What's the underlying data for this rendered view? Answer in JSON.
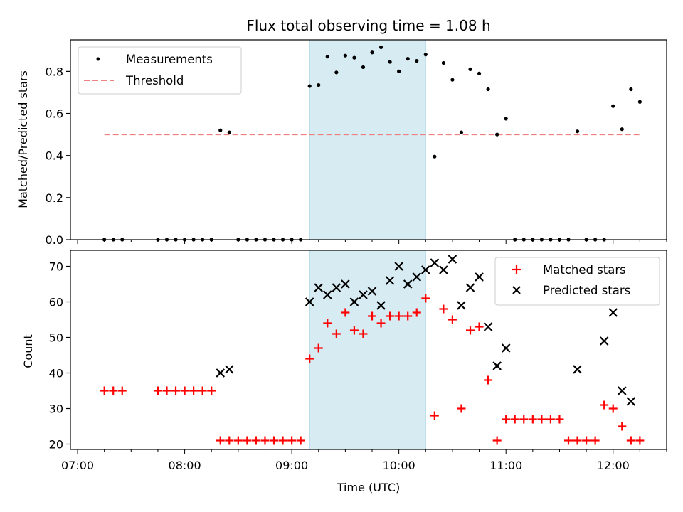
{
  "chart_data": [
    {
      "type": "scatter",
      "title": "Flux total observing time = 1.08 h",
      "xlabel": "",
      "ylabel": "Matched/Predicted stars",
      "ylim": [
        0,
        0.95
      ],
      "yticks": [
        "0.0",
        "0.2",
        "0.4",
        "0.6",
        "0.8"
      ],
      "xlim": [
        "06:56",
        "12:30"
      ],
      "highlight_span": [
        "09:10",
        "10:15"
      ],
      "legend": {
        "placement": "top-left",
        "entries": [
          "Measurements",
          "Threshold"
        ]
      },
      "threshold": {
        "name": "Threshold",
        "value": 0.5,
        "x_range": [
          "07:15",
          "12:15"
        ]
      },
      "series": [
        {
          "name": "Measurements",
          "x": [
            "07:15",
            "07:20",
            "07:25",
            "07:45",
            "07:50",
            "07:55",
            "08:00",
            "08:05",
            "08:10",
            "08:15",
            "08:20",
            "08:25",
            "08:30",
            "08:35",
            "08:40",
            "08:45",
            "08:50",
            "08:55",
            "09:00",
            "09:05",
            "09:10",
            "09:15",
            "09:20",
            "09:25",
            "09:30",
            "09:35",
            "09:40",
            "09:45",
            "09:50",
            "09:55",
            "10:00",
            "10:05",
            "10:10",
            "10:15",
            "10:20",
            "10:25",
            "10:30",
            "10:35",
            "10:40",
            "10:45",
            "10:50",
            "10:55",
            "11:00",
            "11:05",
            "11:10",
            "11:15",
            "11:20",
            "11:25",
            "11:30",
            "11:35",
            "11:40",
            "11:45",
            "11:50",
            "11:55",
            "12:00",
            "12:05",
            "12:10",
            "12:15"
          ],
          "y": [
            0,
            0,
            0,
            0,
            0,
            0,
            0,
            0,
            0,
            0,
            0.52,
            0.51,
            0,
            0,
            0,
            0,
            0,
            0,
            0,
            0,
            0.73,
            0.735,
            0.87,
            0.795,
            0.875,
            0.865,
            0.82,
            0.89,
            0.915,
            0.845,
            0.8,
            0.86,
            0.85,
            0.88,
            0.395,
            0.84,
            0.76,
            0.51,
            0.81,
            0.79,
            0.715,
            0.5,
            0.575,
            0,
            0,
            0,
            0,
            0,
            0,
            0,
            0.515,
            0,
            0,
            0,
            0.635,
            0.525,
            0.715,
            0.655
          ]
        }
      ]
    },
    {
      "type": "scatter",
      "title": "",
      "xlabel": "Time (UTC)",
      "ylabel": "Count",
      "ylim": [
        18.5,
        74.5
      ],
      "yticks": [
        "20",
        "30",
        "40",
        "50",
        "60",
        "70"
      ],
      "xlim": [
        "06:56",
        "12:30"
      ],
      "xticks": [
        "07:00",
        "08:00",
        "09:00",
        "10:00",
        "11:00",
        "12:00"
      ],
      "highlight_span": [
        "09:10",
        "10:15"
      ],
      "legend": {
        "placement": "top-right",
        "entries": [
          "Matched stars",
          "Predicted stars"
        ]
      },
      "series": [
        {
          "name": "Matched stars",
          "color": "#ff0000",
          "marker": "plus",
          "x": [
            "07:15",
            "07:20",
            "07:25",
            "07:45",
            "07:50",
            "07:55",
            "08:00",
            "08:05",
            "08:10",
            "08:15",
            "08:20",
            "08:25",
            "08:30",
            "08:35",
            "08:40",
            "08:45",
            "08:50",
            "08:55",
            "09:00",
            "09:05",
            "09:10",
            "09:15",
            "09:20",
            "09:25",
            "09:30",
            "09:35",
            "09:40",
            "09:45",
            "09:50",
            "09:55",
            "10:00",
            "10:05",
            "10:10",
            "10:15",
            "10:20",
            "10:25",
            "10:30",
            "10:35",
            "10:40",
            "10:45",
            "10:50",
            "10:55",
            "11:00",
            "11:05",
            "11:10",
            "11:15",
            "11:20",
            "11:25",
            "11:30",
            "11:35",
            "11:40",
            "11:45",
            "11:50",
            "11:55",
            "12:00",
            "12:05",
            "12:10",
            "12:15"
          ],
          "y": [
            35,
            35,
            35,
            35,
            35,
            35,
            35,
            35,
            35,
            35,
            21,
            21,
            21,
            21,
            21,
            21,
            21,
            21,
            21,
            21,
            44,
            47,
            54,
            51,
            57,
            52,
            51,
            56,
            54,
            56,
            56,
            56,
            57,
            61,
            28,
            58,
            55,
            30,
            52,
            53,
            38,
            21,
            27,
            27,
            27,
            27,
            27,
            27,
            27,
            21,
            21,
            21,
            21,
            31,
            30,
            25,
            21,
            21
          ]
        },
        {
          "name": "Predicted stars",
          "color": "#000000",
          "marker": "x",
          "x": [
            "08:20",
            "08:25",
            "09:10",
            "09:15",
            "09:20",
            "09:25",
            "09:30",
            "09:35",
            "09:40",
            "09:45",
            "09:50",
            "09:55",
            "10:00",
            "10:05",
            "10:10",
            "10:15",
            "10:20",
            "10:25",
            "10:30",
            "10:35",
            "10:40",
            "10:45",
            "10:50",
            "10:55",
            "11:00",
            "11:40",
            "11:55",
            "12:00",
            "12:05",
            "12:10"
          ],
          "y": [
            40,
            41,
            60,
            64,
            62,
            64,
            65,
            60,
            62,
            63,
            59,
            66,
            70,
            65,
            67,
            69,
            71,
            69,
            72,
            59,
            64,
            67,
            53,
            42,
            47,
            41,
            49,
            57,
            35,
            32
          ]
        }
      ]
    }
  ]
}
